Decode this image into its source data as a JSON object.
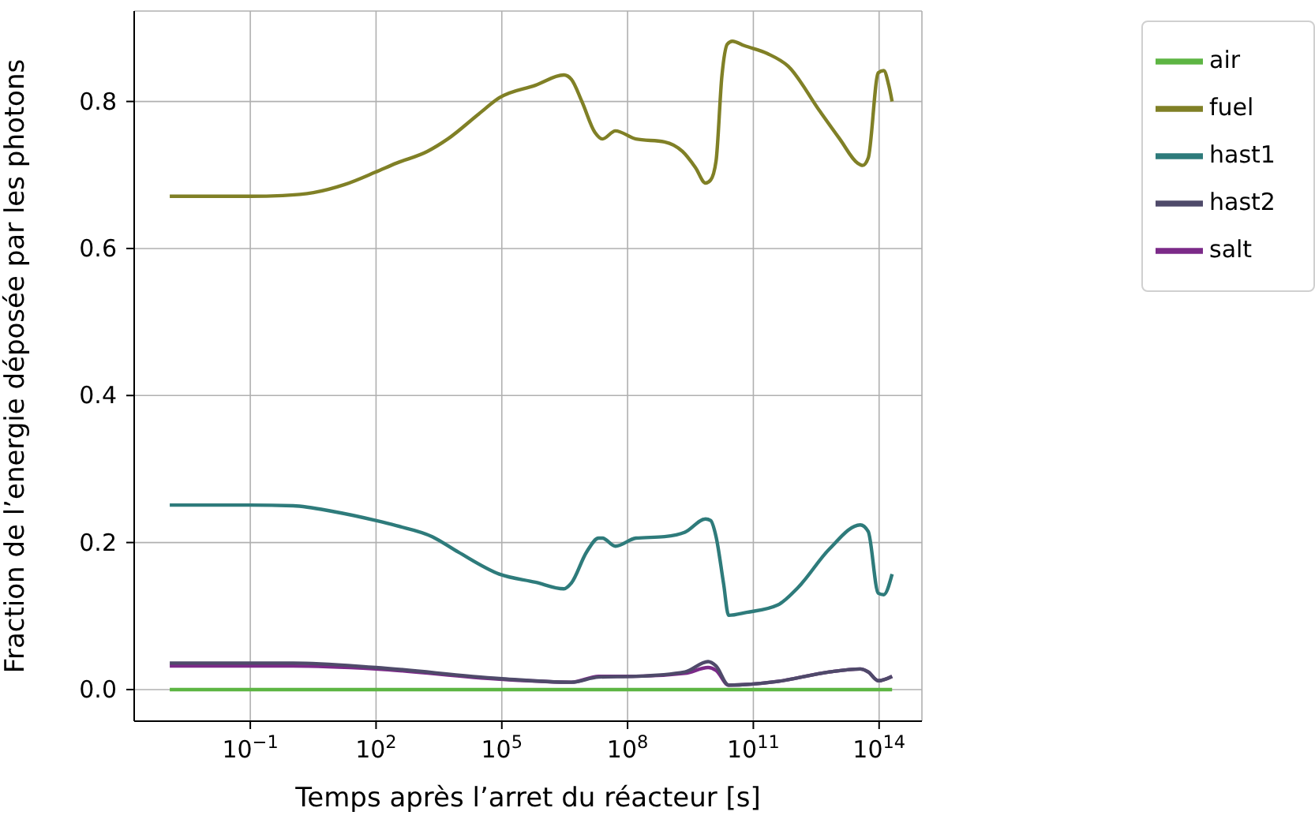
{
  "chart_data": {
    "type": "line",
    "xlabel": "Temps après l’arret du réacteur [s]",
    "ylabel": "Fraction de l’energie déposée par les photons",
    "log": "x",
    "xlim": [
      0.00017,
      1050000000000000.0
    ],
    "xticks": [
      {
        "value": 0.1,
        "label": "10$^{−1}$"
      },
      {
        "value": 100,
        "label": "10$^{2}$"
      },
      {
        "value": 100000,
        "label": "10$^{5}$"
      },
      {
        "value": 100000000,
        "label": "10$^{8}$"
      },
      {
        "value": 100000000000,
        "label": "10$^{11}$"
      },
      {
        "value": 100000000000000,
        "label": "10$^{14}$"
      }
    ],
    "ylim": [
      -0.043,
      0.923
    ],
    "yticks": [
      {
        "value": 0,
        "label": "0.0"
      },
      {
        "value": 0.2,
        "label": "0.2"
      },
      {
        "value": 0.4,
        "label": "0.4"
      },
      {
        "value": 0.6,
        "label": "0.6"
      },
      {
        "value": 0.8,
        "label": "0.8"
      }
    ],
    "grid": true,
    "legend": "top right",
    "series": [
      {
        "name": "fuel",
        "color": "#808026",
        "x": [
          0.0012,
          0.1,
          0.59,
          3.2,
          17.8,
          98,
          302,
          1660,
          5130,
          28200,
          87100,
          631000,
          3020000.0,
          4570000.0,
          8130000.0,
          16600000.0,
          25100000.0,
          51300000.0,
          158000000.0,
          759000000.0,
          2040000000.0,
          4170000000.0,
          7240000000.0,
          9550000000.0,
          12900000000.0,
          17800000000.0,
          24000000000.0,
          31600000000.0,
          60300000000.0,
          219000000000.0,
          676000000000.0,
          3720000000000.0,
          11500000000000.0,
          30900000000000.0,
          40700000000000.0,
          55000000000000.0,
          95500000000000.0,
          129000000000000.0,
          170000000000000.0,
          204000000000000.0
        ],
        "values": [
          0.671,
          0.671,
          0.672,
          0.676,
          0.687,
          0.704,
          0.716,
          0.732,
          0.749,
          0.783,
          0.805,
          0.822,
          0.836,
          0.83,
          0.8,
          0.758,
          0.749,
          0.76,
          0.749,
          0.745,
          0.732,
          0.71,
          0.689,
          0.693,
          0.719,
          0.835,
          0.878,
          0.882,
          0.876,
          0.865,
          0.848,
          0.788,
          0.749,
          0.716,
          0.713,
          0.723,
          0.839,
          0.842,
          0.822,
          0.8
        ]
      },
      {
        "name": "hast1",
        "color": "#2e7b7b",
        "x": [
          0.0012,
          0.1,
          1.05,
          10,
          98,
          302,
          2190,
          9120,
          87100,
          631000,
          3020000.0,
          4570000.0,
          10500000.0,
          20400000.0,
          25100000.0,
          51300000.0,
          158000000.0,
          759000000.0,
          2340000000.0,
          7240000000.0,
          9550000000.0,
          12900000000.0,
          19500000000.0,
          25700000000.0,
          69200000000.0,
          380000000000.0,
          1170000000000.0,
          6460000000000.0,
          35500000000000.0,
          55000000000000.0,
          95500000000000.0,
          129000000000000.0,
          204000000000000.0
        ],
        "values": [
          0.251,
          0.251,
          0.25,
          0.242,
          0.23,
          0.223,
          0.208,
          0.187,
          0.157,
          0.146,
          0.137,
          0.145,
          0.187,
          0.206,
          0.206,
          0.195,
          0.206,
          0.208,
          0.214,
          0.232,
          0.23,
          0.208,
          0.144,
          0.101,
          0.105,
          0.115,
          0.139,
          0.191,
          0.224,
          0.215,
          0.131,
          0.129,
          0.157
        ]
      },
      {
        "name": "salt",
        "color": "#7b2a88",
        "x": [
          0.0012,
          1.05,
          98,
          87100,
          4570000.0,
          20400000.0,
          158000000.0,
          2340000000.0,
          8320000000.0,
          12900000000.0,
          25700000000.0,
          380000000000.0,
          6460000000000.0,
          35500000000000.0,
          55000000000000.0,
          95500000000000.0,
          204000000000000.0
        ],
        "values": [
          0.032,
          0.032,
          0.028,
          0.014,
          0.01,
          0.018,
          0.018,
          0.022,
          0.03,
          0.026,
          0.006,
          0.011,
          0.024,
          0.028,
          0.024,
          0.012,
          0.018
        ]
      },
      {
        "name": "hast2",
        "color": "#4f4a6a",
        "x": [
          0.0012,
          1.05,
          98,
          87100,
          4570000.0,
          20400000.0,
          158000000.0,
          2340000000.0,
          8320000000.0,
          12900000000.0,
          25700000000.0,
          380000000000.0,
          6460000000000.0,
          35500000000000.0,
          55000000000000.0,
          95500000000000.0,
          204000000000000.0
        ],
        "values": [
          0.036,
          0.036,
          0.03,
          0.015,
          0.01,
          0.017,
          0.018,
          0.024,
          0.038,
          0.032,
          0.006,
          0.011,
          0.024,
          0.028,
          0.024,
          0.012,
          0.018
        ]
      },
      {
        "name": "air",
        "color": "#5db543",
        "x": [
          0.0012,
          204000000000000.0
        ],
        "values": [
          0,
          0
        ]
      }
    ]
  }
}
